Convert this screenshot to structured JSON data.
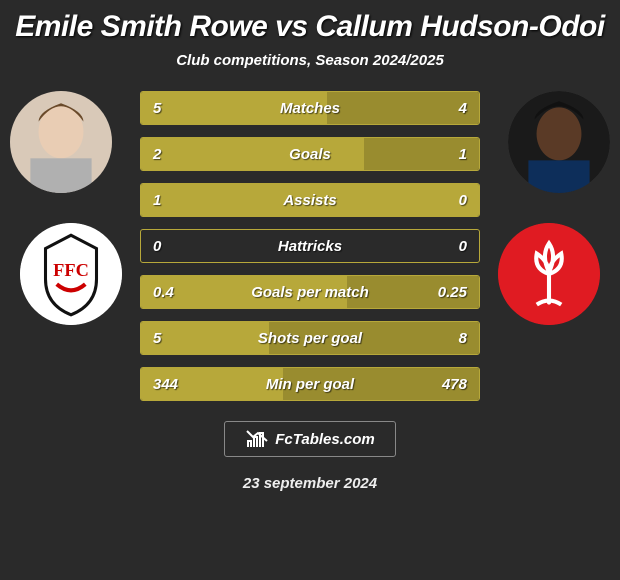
{
  "title": "Emile Smith Rowe vs Callum Hudson-Odoi",
  "subtitle": "Club competitions, Season 2024/2025",
  "date": "23 september 2024",
  "footer_brand": "FcTables.com",
  "colors": {
    "bg": "#2a2a2a",
    "bar_left": "#b7a83a",
    "bar_right": "#998c2f",
    "border": "#b7a83a",
    "badge_right_bg": "#e01b22",
    "badge_left_bg": "#ffffff"
  },
  "stats": [
    {
      "label": "Matches",
      "left_text": "5",
      "right_text": "4",
      "left_pct": 55,
      "right_pct": 45
    },
    {
      "label": "Goals",
      "left_text": "2",
      "right_text": "1",
      "left_pct": 66,
      "right_pct": 34
    },
    {
      "label": "Assists",
      "left_text": "1",
      "right_text": "0",
      "left_pct": 100,
      "right_pct": 0
    },
    {
      "label": "Hattricks",
      "left_text": "0",
      "right_text": "0",
      "left_pct": 0,
      "right_pct": 0
    },
    {
      "label": "Goals per match",
      "left_text": "0.4",
      "right_text": "0.25",
      "left_pct": 61,
      "right_pct": 39
    },
    {
      "label": "Shots per goal",
      "left_text": "5",
      "right_text": "8",
      "left_pct": 38,
      "right_pct": 62
    },
    {
      "label": "Min per goal",
      "left_text": "344",
      "right_text": "478",
      "left_pct": 42,
      "right_pct": 58
    }
  ]
}
